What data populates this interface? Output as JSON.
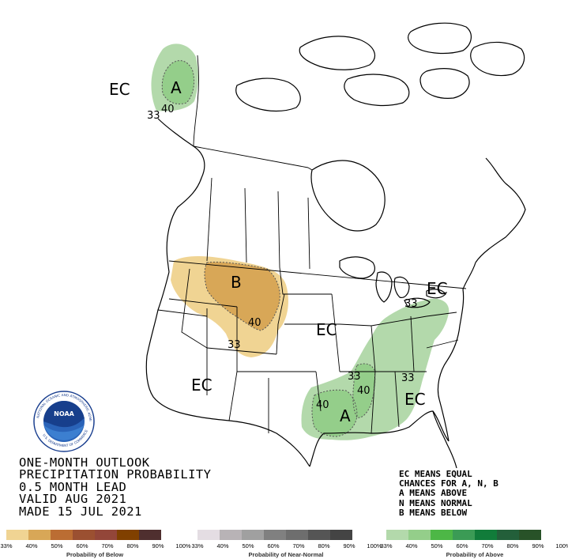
{
  "map": {
    "regions": [
      {
        "label": "EC"
      },
      {
        "label": "A"
      },
      {
        "label": "B"
      },
      {
        "label": "EC"
      },
      {
        "label": "EC"
      },
      {
        "label": "EC"
      },
      {
        "label": "A"
      },
      {
        "label": "EC"
      }
    ],
    "contours": [
      "33",
      "40",
      "40",
      "33",
      "33",
      "33",
      "40",
      "33",
      "40"
    ]
  },
  "title_lines": [
    "ONE-MONTH OUTLOOK",
    "PRECIPITATION PROBABILITY",
    "0.5 MONTH LEAD",
    "VALID AUG 2021",
    "MADE 15 JUL 2021"
  ],
  "legend_notes": [
    "EC MEANS EQUAL",
    "CHANCES FOR A, N, B",
    "A MEANS ABOVE",
    "N MEANS NORMAL",
    "B MEANS BELOW"
  ],
  "colorbars": [
    {
      "title": "Probability of Below",
      "ticks": [
        "33%",
        "40%",
        "50%",
        "60%",
        "70%",
        "80%",
        "90%",
        "100%"
      ],
      "colors": [
        "#f0d493",
        "#d8a757",
        "#bb6d33",
        "#9b5031",
        "#934639",
        "#804000",
        "#4f2f2f"
      ]
    },
    {
      "title": "Probability of Near-Normal",
      "ticks": [
        "33%",
        "40%",
        "50%",
        "60%",
        "70%",
        "80%",
        "90%",
        "100%"
      ],
      "colors": [
        "#e4dde3",
        "#b8b3b6",
        "#a0a0a0",
        "#808080",
        "#6e6e6e",
        "#555555",
        "#444444"
      ]
    },
    {
      "title": "Probability of Above",
      "ticks": [
        "33%",
        "40%",
        "50%",
        "60%",
        "70%",
        "80%",
        "90%",
        "100%"
      ],
      "colors": [
        "#b3d9ab",
        "#94ce8a",
        "#4db746",
        "#3b9b55",
        "#117c3a",
        "#235f3a",
        "#285228"
      ]
    }
  ],
  "logo": {
    "text": "NOAA",
    "ring_text": "NATIONAL OCEANIC AND ATMOSPHERIC ADMINISTRATION",
    "ring_text_bottom": "U.S. DEPARTMENT OF COMMERCE"
  },
  "colors": {
    "above_light": "#b3d9ab",
    "above_dark": "#94ce8a",
    "below_light": "#f0d493",
    "below_dark": "#d8a757"
  }
}
